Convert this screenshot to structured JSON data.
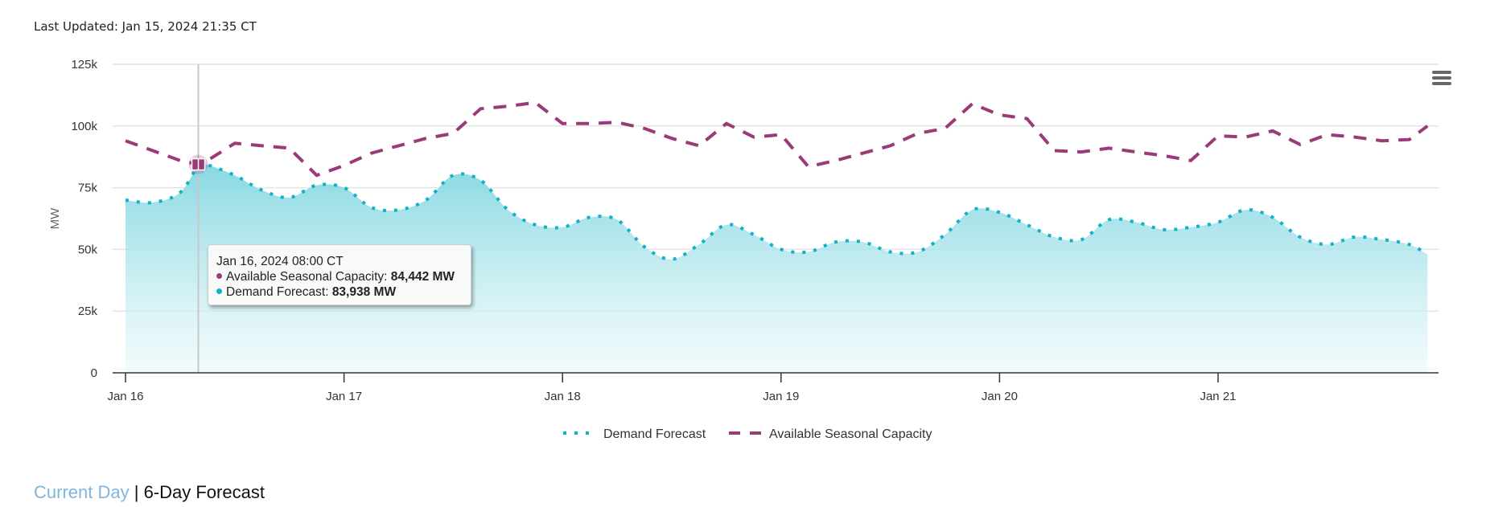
{
  "header": {
    "last_updated": "Last Updated: Jan 15, 2024 21:35 CT"
  },
  "menu": {
    "icon": "hamburger-menu-icon"
  },
  "tooltip": {
    "title": "Jan 16, 2024 08:00 CT",
    "rows": [
      {
        "label": "Available Seasonal Capacity: ",
        "value": "84,442 MW",
        "color": "#9b3a78"
      },
      {
        "label": "Demand Forecast: ",
        "value": "83,938 MW",
        "color": "#13b0c6"
      }
    ]
  },
  "footer": {
    "link_label": "Current Day",
    "separator": "|",
    "current_label": "6-Day Forecast"
  },
  "chart_data": {
    "type": "area",
    "title": "",
    "xlabel": "",
    "ylabel": "MW",
    "ylim": [
      0,
      125000
    ],
    "yticks": [
      0,
      25000,
      50000,
      75000,
      100000,
      125000
    ],
    "ytick_labels": [
      "0",
      "25k",
      "50k",
      "75k",
      "100k",
      "125k"
    ],
    "x_unit": "hours since Jan 16 00:00",
    "xlim": [
      0,
      144
    ],
    "xticks": [
      0,
      24,
      48,
      72,
      96,
      120
    ],
    "xtick_labels": [
      "Jan 16",
      "Jan 17",
      "Jan 18",
      "Jan 19",
      "Jan 20",
      "Jan 21"
    ],
    "grid": true,
    "legend": "bottom-center",
    "crosshair_x": 8,
    "x": [
      0,
      3,
      6,
      8,
      9,
      12,
      15,
      18,
      21,
      24,
      27,
      30,
      33,
      36,
      39,
      42,
      45,
      48,
      51,
      54,
      57,
      60,
      63,
      66,
      69,
      72,
      75,
      78,
      81,
      84,
      87,
      90,
      93,
      96,
      99,
      102,
      105,
      108,
      111,
      114,
      117,
      120,
      123,
      126,
      129,
      132,
      135,
      138,
      141,
      143
    ],
    "series": [
      {
        "name": "Demand Forecast",
        "color": "#13b0c6",
        "style": "dotted-area",
        "values": [
          70000,
          69000,
          73000,
          83938,
          84200,
          80000,
          74000,
          71000,
          76000,
          75000,
          67000,
          66000,
          70000,
          80000,
          78000,
          66000,
          60000,
          59000,
          63000,
          62000,
          51000,
          46000,
          52000,
          60000,
          56000,
          50000,
          49000,
          53000,
          53000,
          49000,
          49000,
          56000,
          66000,
          65000,
          60000,
          55000,
          54000,
          62000,
          61000,
          58000,
          59000,
          61000,
          66000,
          63000,
          55000,
          52000,
          55000,
          54000,
          52000,
          48000
        ]
      },
      {
        "name": "Available Seasonal Capacity",
        "color": "#9b3a78",
        "style": "dashed",
        "values": [
          94000,
          90000,
          86000,
          84442,
          86000,
          93000,
          92000,
          91000,
          80000,
          84000,
          89000,
          92000,
          95000,
          97000,
          107000,
          108000,
          109500,
          101000,
          101000,
          101500,
          99000,
          95000,
          92000,
          101000,
          95500,
          96500,
          83500,
          86000,
          89000,
          92000,
          97000,
          99000,
          109000,
          104500,
          103000,
          90000,
          89500,
          91000,
          89500,
          88000,
          86000,
          96000,
          95500,
          98000,
          92500,
          96500,
          95500,
          94000,
          94500,
          100000
        ]
      }
    ]
  }
}
